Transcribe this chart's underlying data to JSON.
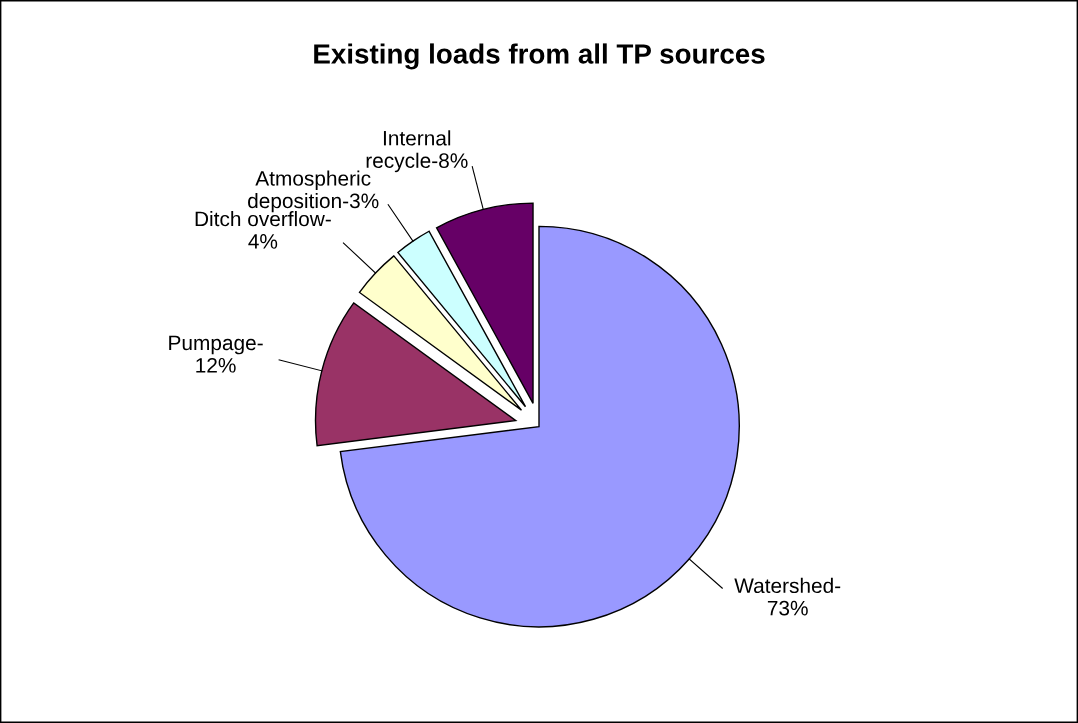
{
  "chart_data": {
    "type": "pie",
    "title": "Existing loads from all TP sources",
    "categories": [
      "Watershed-\n73%",
      "Pumpage-\n12%",
      "Ditch overflow-\n4%",
      "Atmospheric\ndeposition-3%",
      "Internal\nrecycle-8%"
    ],
    "values": [
      73,
      12,
      4,
      3,
      8
    ],
    "colors": [
      "#9999ff",
      "#993366",
      "#ffffcc",
      "#ccffff",
      "#660066"
    ],
    "legend": false
  }
}
